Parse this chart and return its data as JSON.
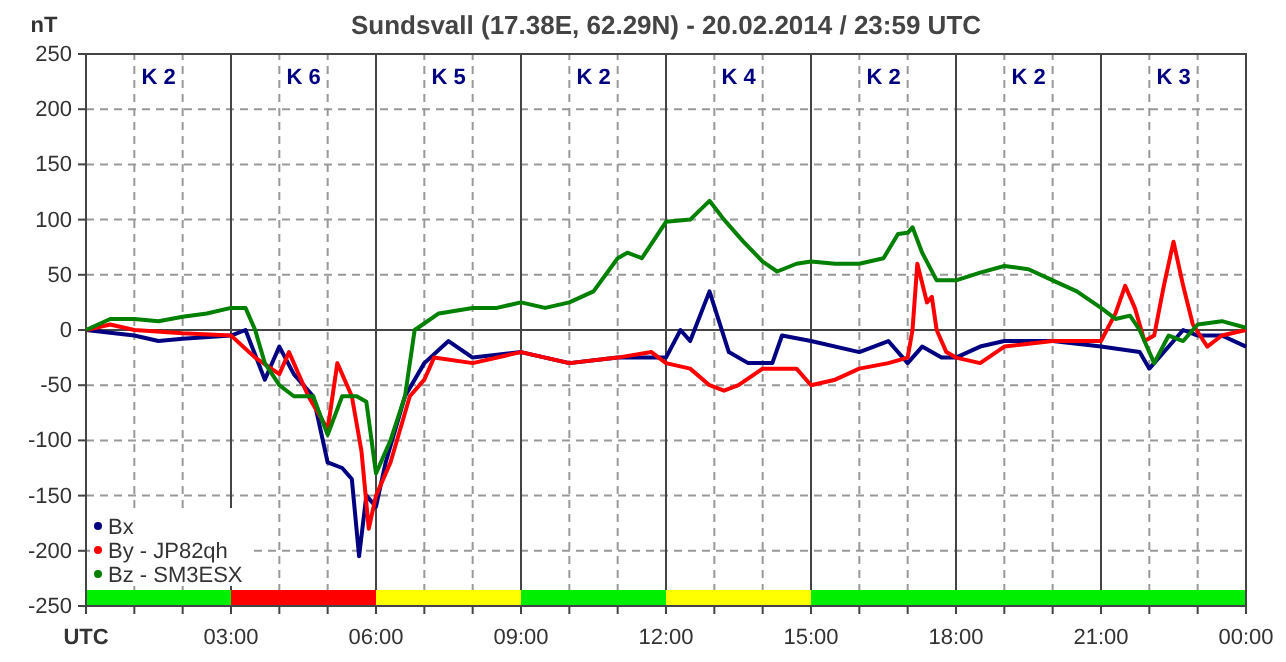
{
  "chart_data": {
    "type": "line",
    "title": "Sundsvall (17.38E, 62.29N) - 20.02.2014 / 23:59  UTC",
    "ylabel": "nT",
    "xlim": [
      0,
      24
    ],
    "xticks": [
      {
        "value": 0,
        "label": "UTC"
      },
      {
        "value": 1,
        "label": null
      },
      {
        "value": 2,
        "label": null
      },
      {
        "value": 3,
        "label": "03:00"
      },
      {
        "value": 4,
        "label": null
      },
      {
        "value": 5,
        "label": null
      },
      {
        "value": 6,
        "label": "06:00"
      },
      {
        "value": 7,
        "label": null
      },
      {
        "value": 8,
        "label": null
      },
      {
        "value": 9,
        "label": "09:00"
      },
      {
        "value": 10,
        "label": null
      },
      {
        "value": 11,
        "label": null
      },
      {
        "value": 12,
        "label": "12:00"
      },
      {
        "value": 13,
        "label": null
      },
      {
        "value": 14,
        "label": null
      },
      {
        "value": 15,
        "label": "15:00"
      },
      {
        "value": 16,
        "label": null
      },
      {
        "value": 17,
        "label": null
      },
      {
        "value": 18,
        "label": "18:00"
      },
      {
        "value": 19,
        "label": null
      },
      {
        "value": 20,
        "label": null
      },
      {
        "value": 21,
        "label": "21:00"
      },
      {
        "value": 22,
        "label": null
      },
      {
        "value": 23,
        "label": null
      },
      {
        "value": 24,
        "label": "00:00"
      }
    ],
    "ylim": [
      -250,
      250
    ],
    "yticks": [
      -250,
      -200,
      -150,
      -100,
      -50,
      0,
      50,
      100,
      150,
      200,
      250
    ],
    "grid": true,
    "legend": "bottom left",
    "marker": "none",
    "line_style": "solid",
    "series": [
      {
        "name": "Bx",
        "color": "#000080",
        "x": [
          0,
          1,
          1.5,
          2,
          3,
          3.3,
          3.7,
          4,
          4.3,
          4.7,
          5,
          5.3,
          5.5,
          5.65,
          5.8,
          6,
          6.2,
          6.6,
          7,
          7.5,
          8,
          9,
          10,
          11,
          12,
          12.3,
          12.5,
          12.9,
          13.3,
          13.7,
          14.2,
          14.4,
          15,
          16,
          16.6,
          17,
          17.3,
          17.7,
          18,
          18.5,
          19,
          20,
          21,
          21.8,
          22,
          22.5,
          22.7,
          23,
          23.5,
          24
        ],
        "values": [
          0,
          -5,
          -10,
          -8,
          -5,
          0,
          -45,
          -15,
          -40,
          -60,
          -120,
          -125,
          -135,
          -205,
          -150,
          -160,
          -120,
          -60,
          -30,
          -10,
          -25,
          -20,
          -30,
          -25,
          -25,
          0,
          -10,
          35,
          -20,
          -30,
          -30,
          -5,
          -10,
          -20,
          -10,
          -30,
          -15,
          -25,
          -25,
          -15,
          -10,
          -10,
          -15,
          -20,
          -35,
          -10,
          0,
          -5,
          -5,
          -15
        ]
      },
      {
        "name": "By - JP82qh",
        "color": "#ff0000",
        "x": [
          0,
          0.5,
          1,
          2,
          3,
          3.5,
          4,
          4.2,
          4.6,
          5,
          5.2,
          5.5,
          5.7,
          5.85,
          6,
          6.3,
          6.7,
          7,
          7.2,
          8,
          9,
          10,
          11,
          11.7,
          12,
          12.5,
          12.9,
          13.2,
          13.5,
          14,
          14.7,
          15,
          15.5,
          16,
          16.6,
          17,
          17.1,
          17.2,
          17.4,
          17.5,
          17.6,
          17.8,
          18,
          18.5,
          19,
          20,
          21,
          21.3,
          21.5,
          21.7,
          21.9,
          22.1,
          22.3,
          22.5,
          22.7,
          22.9,
          23.2,
          23.5,
          24
        ],
        "values": [
          0,
          5,
          0,
          -3,
          -5,
          -25,
          -40,
          -20,
          -60,
          -90,
          -30,
          -60,
          -110,
          -180,
          -150,
          -120,
          -60,
          -45,
          -25,
          -30,
          -20,
          -30,
          -25,
          -20,
          -30,
          -35,
          -50,
          -55,
          -50,
          -35,
          -35,
          -50,
          -45,
          -35,
          -30,
          -25,
          0,
          60,
          25,
          30,
          0,
          -20,
          -25,
          -30,
          -15,
          -10,
          -10,
          15,
          40,
          20,
          -10,
          -5,
          40,
          80,
          40,
          5,
          -15,
          -5,
          0
        ]
      },
      {
        "name": "Bz - SM3ESX",
        "color": "#008000",
        "x": [
          0,
          0.5,
          1,
          1.5,
          2,
          2.5,
          3,
          3.3,
          3.5,
          3.7,
          4,
          4.3,
          4.7,
          5,
          5.3,
          5.6,
          5.8,
          6,
          6.3,
          6.6,
          6.8,
          7.3,
          8,
          8.5,
          9,
          9.5,
          10,
          10.5,
          11,
          11.2,
          11.5,
          12,
          12.5,
          12.9,
          13.2,
          13.6,
          14,
          14.3,
          14.7,
          15,
          15.5,
          16,
          16.5,
          16.8,
          17,
          17.1,
          17.3,
          17.6,
          18,
          18.5,
          19,
          19.5,
          20,
          20.5,
          21,
          21.3,
          21.6,
          21.8,
          22.1,
          22.4,
          22.7,
          23,
          23.5,
          24
        ],
        "values": [
          0,
          10,
          10,
          8,
          12,
          15,
          20,
          20,
          0,
          -30,
          -50,
          -60,
          -60,
          -95,
          -60,
          -60,
          -65,
          -130,
          -100,
          -60,
          0,
          15,
          20,
          20,
          25,
          20,
          25,
          35,
          65,
          70,
          65,
          98,
          100,
          117,
          100,
          80,
          62,
          53,
          60,
          62,
          60,
          60,
          65,
          87,
          88,
          93,
          70,
          45,
          45,
          52,
          58,
          55,
          45,
          35,
          20,
          10,
          13,
          0,
          -30,
          -5,
          -10,
          5,
          8,
          2
        ]
      }
    ],
    "annotations": [
      "K 2",
      "K 6",
      "K 5",
      "K 2",
      "K 4",
      "K 2",
      "K 2",
      "K 3"
    ]
  }
}
